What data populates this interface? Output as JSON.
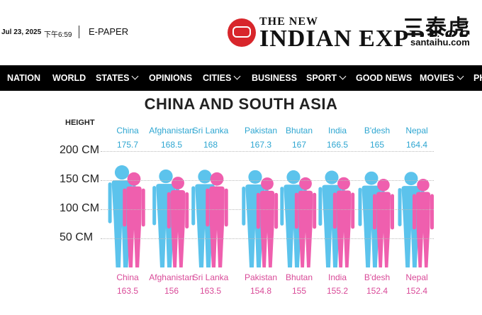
{
  "header": {
    "date": "Jul 23, 2025",
    "time": "下午6:59",
    "epaper_label": "E-PAPER",
    "logo_small": "THE NEW",
    "logo_main": "INDIAN EXPRESS",
    "watermark_cn": "三泰虎",
    "watermark_url": "santaihu.com"
  },
  "nav": {
    "items": [
      {
        "label": "NATION",
        "chevron": false
      },
      {
        "label": "WORLD",
        "chevron": false
      },
      {
        "label": "STATES",
        "chevron": true
      },
      {
        "label": "OPINIONS",
        "chevron": false
      },
      {
        "label": "CITIES",
        "chevron": true
      },
      {
        "label": "BUSINESS",
        "chevron": false
      },
      {
        "label": "SPORT",
        "chevron": true
      },
      {
        "label": "GOOD NEWS",
        "chevron": false
      },
      {
        "label": "MOVIES",
        "chevron": true
      },
      {
        "label": "PH",
        "chevron": false
      }
    ]
  },
  "infographic": {
    "title": "CHINA AND SOUTH ASIA",
    "height_label": "HEIGHT",
    "ticks": [
      "200 CM",
      "150 CM",
      "100 CM",
      "50 CM"
    ],
    "colors": {
      "male": "#5cc3ec",
      "female": "#ef5fae"
    }
  },
  "chart_data": {
    "type": "bar",
    "title": "CHINA AND SOUTH ASIA",
    "ylabel": "HEIGHT",
    "categories": [
      "China",
      "Afghanistan",
      "Sri Lanka",
      "Pakistan",
      "Bhutan",
      "India",
      "B'desh",
      "Nepal"
    ],
    "series": [
      {
        "values": [
          175.7,
          168.5,
          168,
          167.3,
          167,
          166.5,
          165,
          164.4
        ]
      },
      {
        "values": [
          163.5,
          156,
          163.5,
          154.8,
          155,
          155.2,
          152.4,
          152.4
        ]
      }
    ],
    "ylim": [
      0,
      200
    ],
    "grid": true
  }
}
